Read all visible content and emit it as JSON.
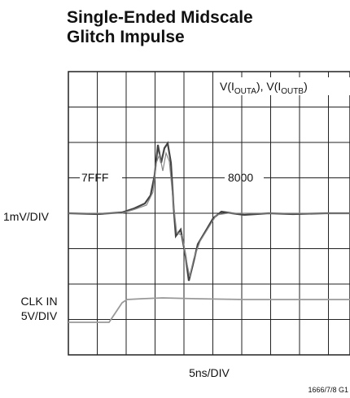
{
  "title": [
    "Single-Ended Midscale",
    "Glitch Impulse"
  ],
  "trace_label": [
    "V(I",
    "OUTA",
    "), V(I",
    "OUTB",
    ")"
  ],
  "code_before": "7FFF",
  "code_after": "8000",
  "y_scale_top": "1mV/DIV",
  "y_scale_bottom": [
    "CLK IN",
    "5V/DIV"
  ],
  "x_scale": "5ns/DIV",
  "figure_id": "1666/7/8 G1"
}
